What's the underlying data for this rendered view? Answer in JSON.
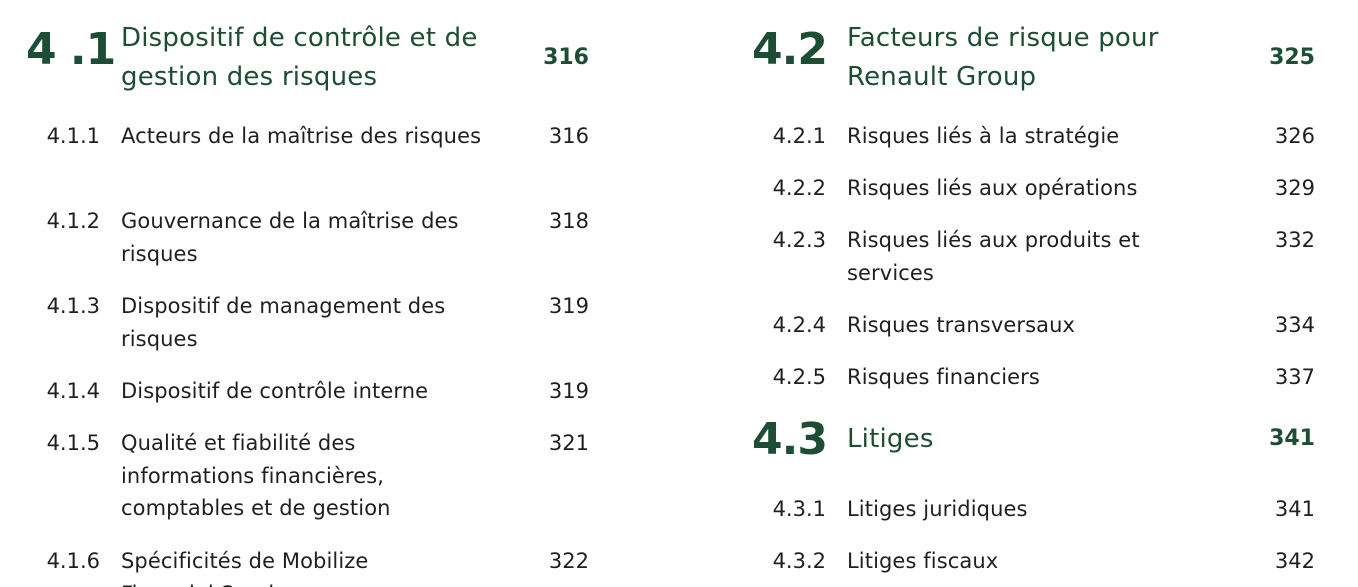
{
  "sections": [
    {
      "number": "4 .1",
      "title": "Dispositif de contrôle et de gestion des risques",
      "page": "316",
      "items": [
        {
          "number": "4.1.1",
          "title": "Acteurs de la maîtrise des risques",
          "page": "316"
        },
        {
          "number": "4.1.2",
          "title": "Gouvernance de la maîtrise des risques",
          "page": "318"
        },
        {
          "number": "4.1.3",
          "title": "Dispositif de management des risques",
          "page": "319"
        },
        {
          "number": "4.1.4",
          "title": "Dispositif de contrôle interne",
          "page": "319"
        },
        {
          "number": "4.1.5",
          "title": "Qualité et fiabilité des informations financières, comptables et de gestion",
          "page": "321"
        },
        {
          "number": "4.1.6",
          "title": "Spécificités de Mobilize Financial Services",
          "page": "322"
        }
      ]
    },
    {
      "number": "4.2",
      "title": "Facteurs de risque pour Renault Group",
      "page": "325",
      "items": [
        {
          "number": "4.2.1",
          "title": "Risques liés à la stratégie",
          "page": "326"
        },
        {
          "number": "4.2.2",
          "title": "Risques liés aux opérations",
          "page": "329"
        },
        {
          "number": "4.2.3",
          "title": "Risques liés aux produits et services",
          "page": "332"
        },
        {
          "number": "4.2.4",
          "title": "Risques transversaux",
          "page": "334"
        },
        {
          "number": "4.2.5",
          "title": "Risques financiers",
          "page": "337"
        }
      ]
    },
    {
      "number": "4.3",
      "title": "Litiges",
      "page": "341",
      "items": [
        {
          "number": "4.3.1",
          "title": "Litiges juridiques",
          "page": "341"
        },
        {
          "number": "4.3.2",
          "title": "Litiges fiscaux",
          "page": "342"
        }
      ]
    }
  ]
}
